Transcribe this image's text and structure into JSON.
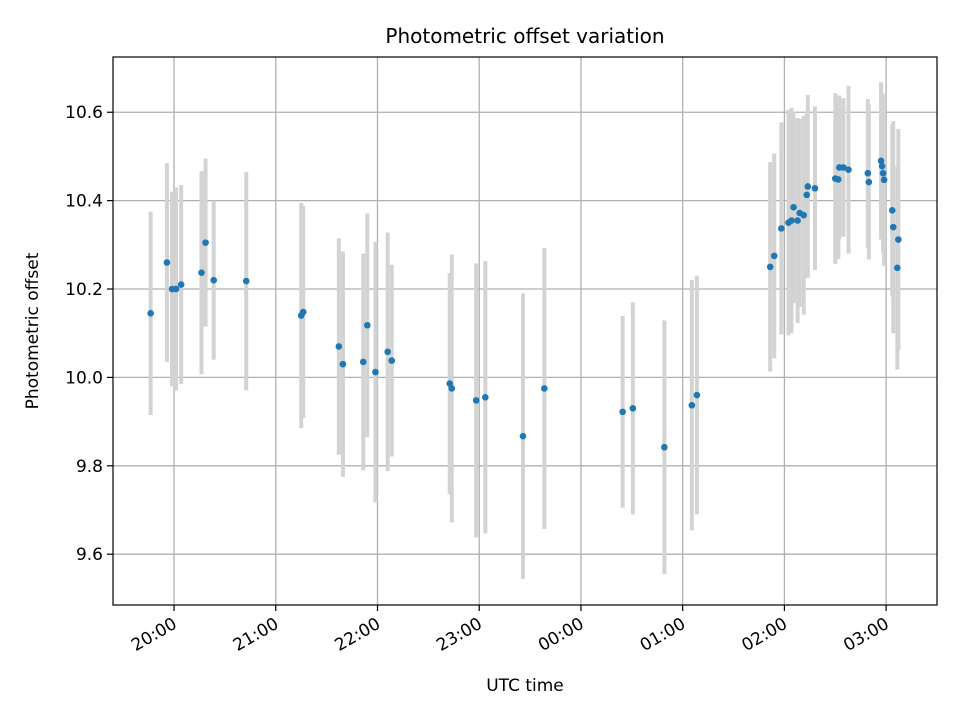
{
  "chart_data": {
    "type": "scatter",
    "title": "Photometric offset variation",
    "xlabel": "UTC time",
    "ylabel": "Photometric offset",
    "xlim": [
      -0.6,
      7.5
    ],
    "ylim": [
      9.485,
      10.725
    ],
    "grid": true,
    "x_unit": "hours relative to 20:00 UTC",
    "xticks": [
      {
        "value": 0,
        "label": "20:00"
      },
      {
        "value": 1,
        "label": "21:00"
      },
      {
        "value": 2,
        "label": "22:00"
      },
      {
        "value": 3,
        "label": "23:00"
      },
      {
        "value": 4,
        "label": "00:00"
      },
      {
        "value": 5,
        "label": "01:00"
      },
      {
        "value": 6,
        "label": "02:00"
      },
      {
        "value": 7,
        "label": "03:00"
      }
    ],
    "yticks": [
      {
        "value": 9.6,
        "label": "9.6"
      },
      {
        "value": 9.8,
        "label": "9.8"
      },
      {
        "value": 10.0,
        "label": "10.0"
      },
      {
        "value": 10.2,
        "label": "10.2"
      },
      {
        "value": 10.4,
        "label": "10.4"
      },
      {
        "value": 10.6,
        "label": "10.6"
      }
    ],
    "colors": {
      "point": "#1f77b4",
      "errorbar": "#d3d3d3",
      "grid": "#b0b0b0"
    },
    "series": [
      {
        "name": "offset",
        "points": [
          {
            "x": -0.23,
            "y": 10.145,
            "err": 0.23
          },
          {
            "x": -0.07,
            "y": 10.26,
            "err": 0.225
          },
          {
            "x": -0.02,
            "y": 10.2,
            "err": 0.22
          },
          {
            "x": 0.02,
            "y": 10.2,
            "err": 0.23
          },
          {
            "x": 0.07,
            "y": 10.21,
            "err": 0.225
          },
          {
            "x": 0.27,
            "y": 10.237,
            "err": 0.23
          },
          {
            "x": 0.31,
            "y": 10.305,
            "err": 0.19
          },
          {
            "x": 0.39,
            "y": 10.22,
            "err": 0.18
          },
          {
            "x": 0.71,
            "y": 10.218,
            "err": 0.247
          },
          {
            "x": 1.25,
            "y": 10.14,
            "err": 0.255
          },
          {
            "x": 1.27,
            "y": 10.148,
            "err": 0.24
          },
          {
            "x": 1.62,
            "y": 10.07,
            "err": 0.245
          },
          {
            "x": 1.66,
            "y": 10.03,
            "err": 0.255
          },
          {
            "x": 1.86,
            "y": 10.035,
            "err": 0.245
          },
          {
            "x": 1.9,
            "y": 10.118,
            "err": 0.253
          },
          {
            "x": 1.98,
            "y": 10.012,
            "err": 0.295
          },
          {
            "x": 2.1,
            "y": 10.058,
            "err": 0.27
          },
          {
            "x": 2.14,
            "y": 10.038,
            "err": 0.217
          },
          {
            "x": 2.71,
            "y": 9.986,
            "err": 0.25
          },
          {
            "x": 2.73,
            "y": 9.975,
            "err": 0.303
          },
          {
            "x": 2.97,
            "y": 9.948,
            "err": 0.31
          },
          {
            "x": 3.06,
            "y": 9.955,
            "err": 0.308
          },
          {
            "x": 3.43,
            "y": 9.867,
            "err": 0.323
          },
          {
            "x": 3.64,
            "y": 9.975,
            "err": 0.318
          },
          {
            "x": 4.41,
            "y": 9.922,
            "err": 0.217
          },
          {
            "x": 4.51,
            "y": 9.93,
            "err": 0.24
          },
          {
            "x": 4.82,
            "y": 9.842,
            "err": 0.287
          },
          {
            "x": 5.09,
            "y": 9.937,
            "err": 0.283
          },
          {
            "x": 5.14,
            "y": 9.96,
            "err": 0.27
          },
          {
            "x": 5.86,
            "y": 10.25,
            "err": 0.237
          },
          {
            "x": 5.9,
            "y": 10.275,
            "err": 0.232
          },
          {
            "x": 5.97,
            "y": 10.337,
            "err": 0.24
          },
          {
            "x": 6.04,
            "y": 10.35,
            "err": 0.255
          },
          {
            "x": 6.07,
            "y": 10.355,
            "err": 0.255
          },
          {
            "x": 6.09,
            "y": 10.385,
            "err": 0.217
          },
          {
            "x": 6.13,
            "y": 10.355,
            "err": 0.232
          },
          {
            "x": 6.15,
            "y": 10.372,
            "err": 0.213
          },
          {
            "x": 6.19,
            "y": 10.367,
            "err": 0.225
          },
          {
            "x": 6.22,
            "y": 10.413,
            "err": 0.188
          },
          {
            "x": 6.23,
            "y": 10.432,
            "err": 0.207
          },
          {
            "x": 6.3,
            "y": 10.428,
            "err": 0.185
          },
          {
            "x": 6.5,
            "y": 10.45,
            "err": 0.193
          },
          {
            "x": 6.53,
            "y": 10.448,
            "err": 0.18
          },
          {
            "x": 6.54,
            "y": 10.475,
            "err": 0.163
          },
          {
            "x": 6.58,
            "y": 10.475,
            "err": 0.157
          },
          {
            "x": 6.63,
            "y": 10.47,
            "err": 0.19
          },
          {
            "x": 6.82,
            "y": 10.462,
            "err": 0.168
          },
          {
            "x": 6.83,
            "y": 10.442,
            "err": 0.175
          },
          {
            "x": 6.95,
            "y": 10.49,
            "err": 0.178
          },
          {
            "x": 6.96,
            "y": 10.478,
            "err": 0.165
          },
          {
            "x": 6.97,
            "y": 10.462,
            "err": 0.18
          },
          {
            "x": 6.98,
            "y": 10.447,
            "err": 0.195
          },
          {
            "x": 7.06,
            "y": 10.378,
            "err": 0.195
          },
          {
            "x": 7.07,
            "y": 10.34,
            "err": 0.24
          },
          {
            "x": 7.11,
            "y": 10.248,
            "err": 0.23
          },
          {
            "x": 7.12,
            "y": 10.312,
            "err": 0.25
          }
        ]
      }
    ]
  }
}
